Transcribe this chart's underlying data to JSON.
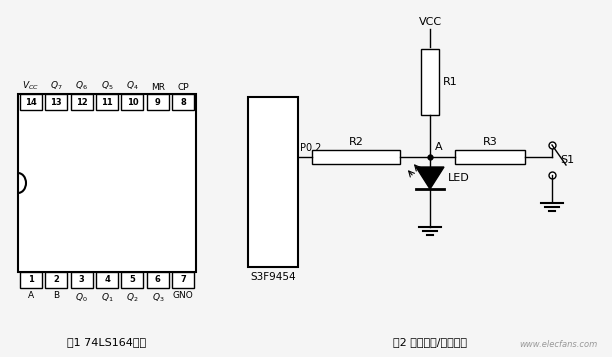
{
  "bg_color": "#f5f5f5",
  "fig1_caption": "图1 74LS164引脚",
  "fig2_caption": "图2 引脚输入/输出复用",
  "watermark": "www.elecfans.com",
  "ic1_pins_top": [
    "14",
    "13",
    "12",
    "11",
    "10",
    "9",
    "8"
  ],
  "ic1_pins_bot": [
    "1",
    "2",
    "3",
    "4",
    "5",
    "6",
    "7"
  ],
  "vcc_label": "VCC",
  "r1_label": "R1",
  "r2_label": "R2",
  "r3_label": "R3",
  "led_label": "LED",
  "s1_label": "S1",
  "p02_label": "P0.2",
  "a_label": "A",
  "s3f_label": "S3F9454"
}
